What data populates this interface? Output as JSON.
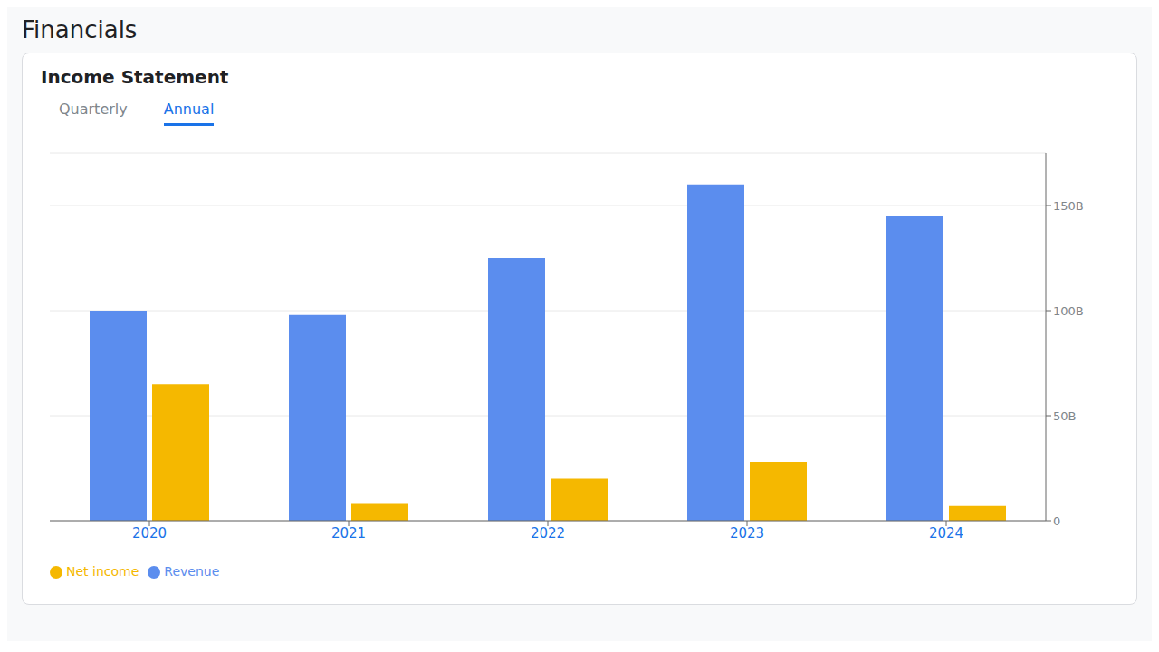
{
  "chart_data": {
    "type": "bar",
    "title": "Financials",
    "subtitle": "Income Statement",
    "annotations": [
      "Quarterly",
      "Annual"
    ],
    "categories": [
      "2020",
      "2021",
      "2022",
      "2023",
      "2024"
    ],
    "series": [
      {
        "name": "Revenue",
        "color": "#5b8dee",
        "values": [
          100,
          98,
          125,
          160,
          145
        ]
      },
      {
        "name": "Net income",
        "color": "#f5b800",
        "values": [
          65,
          8,
          20,
          28,
          7
        ]
      }
    ],
    "ylim": [
      0,
      175
    ],
    "yticks": [
      0,
      {
        "value": 50,
        "label": "50B"
      },
      {
        "value": 100,
        "label": "100B"
      },
      {
        "value": 150,
        "label": "150B"
      }
    ],
    "grid": true,
    "legend": "bottom left"
  }
}
